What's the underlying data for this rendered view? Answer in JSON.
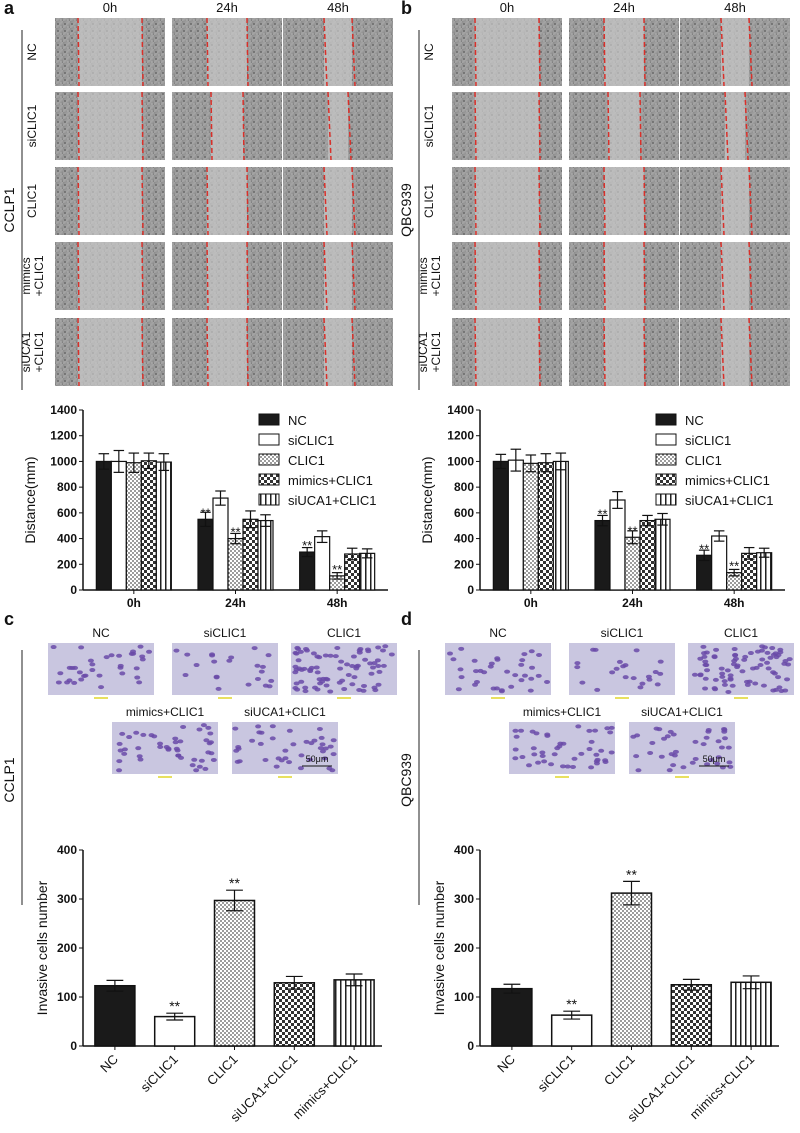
{
  "panels": {
    "a": {
      "letter": "a",
      "cell_line": "CCLP1",
      "time_labels": [
        "0h",
        "24h",
        "48h"
      ],
      "row_labels": [
        [
          "NC"
        ],
        [
          "siCLIC1"
        ],
        [
          "CLIC1"
        ],
        [
          "mimics",
          "+CLIC1"
        ],
        [
          "siUCA1",
          "+CLIC1"
        ]
      ]
    },
    "b": {
      "letter": "b",
      "cell_line": "QBC939",
      "time_labels": [
        "0h",
        "24h",
        "48h"
      ],
      "row_labels": [
        [
          "NC"
        ],
        [
          "siCLIC1"
        ],
        [
          "CLIC1"
        ],
        [
          "mimics",
          "+CLIC1"
        ],
        [
          "siUCA1",
          "+CLIC1"
        ]
      ]
    },
    "c": {
      "letter": "c",
      "cell_line": "CCLP1",
      "image_labels": [
        "NC",
        "siCLIC1",
        "CLIC1",
        "mimics+CLIC1",
        "siUCA1+CLIC1"
      ],
      "scale_bar": "50μm"
    },
    "d": {
      "letter": "d",
      "cell_line": "QBC939",
      "image_labels": [
        "NC",
        "siCLIC1",
        "CLIC1",
        "mimics+CLIC1",
        "siUCA1+CLIC1"
      ],
      "scale_bar": "50μm"
    }
  },
  "colors": {
    "wound_line": "#d9302a",
    "stain": "#6a4aa8",
    "stain_bg": "#c9c6e0"
  },
  "chart_data": [
    {
      "id": "a",
      "type": "bar",
      "ylabel": "Distance(mm)",
      "ylim": [
        0,
        1400
      ],
      "yticks": [
        0,
        200,
        400,
        600,
        800,
        1000,
        1200,
        1400
      ],
      "categories": [
        "0h",
        "24h",
        "48h"
      ],
      "legend_position": "top-right",
      "series": [
        {
          "name": "NC",
          "values": [
            1000,
            550,
            295
          ],
          "errors": [
            60,
            55,
            35
          ],
          "sig": [
            "",
            "**",
            "**"
          ]
        },
        {
          "name": "siCLIC1",
          "values": [
            1000,
            715,
            415
          ],
          "errors": [
            85,
            55,
            45
          ],
          "sig": [
            "",
            "",
            ""
          ]
        },
        {
          "name": "CLIC1",
          "values": [
            990,
            400,
            110
          ],
          "errors": [
            75,
            40,
            25
          ],
          "sig": [
            "",
            "**",
            "**"
          ]
        },
        {
          "name": "mimics+CLIC1",
          "values": [
            1005,
            550,
            280
          ],
          "errors": [
            60,
            65,
            45
          ],
          "sig": [
            "",
            "",
            ""
          ]
        },
        {
          "name": "siUCA1+CLIC1",
          "values": [
            995,
            540,
            285
          ],
          "errors": [
            65,
            45,
            35
          ],
          "sig": [
            "",
            "",
            ""
          ]
        }
      ]
    },
    {
      "id": "b",
      "type": "bar",
      "ylabel": "Distance(mm)",
      "ylim": [
        0,
        1400
      ],
      "yticks": [
        0,
        200,
        400,
        600,
        800,
        1000,
        1200,
        1400
      ],
      "categories": [
        "0h",
        "24h",
        "48h"
      ],
      "legend_position": "top-right",
      "series": [
        {
          "name": "NC",
          "values": [
            1000,
            540,
            270
          ],
          "errors": [
            55,
            40,
            40
          ],
          "sig": [
            "",
            "**",
            "**"
          ]
        },
        {
          "name": "siCLIC1",
          "values": [
            1010,
            700,
            420
          ],
          "errors": [
            85,
            65,
            40
          ],
          "sig": [
            "",
            "",
            ""
          ]
        },
        {
          "name": "CLIC1",
          "values": [
            985,
            410,
            135
          ],
          "errors": [
            65,
            50,
            25
          ],
          "sig": [
            "",
            "**",
            "**"
          ]
        },
        {
          "name": "mimics+CLIC1",
          "values": [
            990,
            540,
            285
          ],
          "errors": [
            70,
            40,
            45
          ],
          "sig": [
            "",
            "",
            ""
          ]
        },
        {
          "name": "siUCA1+CLIC1",
          "values": [
            1000,
            550,
            290
          ],
          "errors": [
            65,
            45,
            35
          ],
          "sig": [
            "",
            "",
            ""
          ]
        }
      ]
    },
    {
      "id": "c",
      "type": "bar",
      "ylabel": "Invasive cells number",
      "ylim": [
        0,
        400
      ],
      "yticks": [
        0,
        100,
        200,
        300,
        400
      ],
      "categories": [
        "NC",
        "siCLIC1",
        "CLIC1",
        "siUCA1+CLIC1",
        "mimics+CLIC1"
      ],
      "values": [
        123,
        60,
        297,
        129,
        135
      ],
      "errors": [
        11,
        7,
        21,
        13,
        12
      ],
      "sig": [
        "",
        "**",
        "**",
        "",
        ""
      ]
    },
    {
      "id": "d",
      "type": "bar",
      "ylabel": "Invasive cells number",
      "ylim": [
        0,
        400
      ],
      "yticks": [
        0,
        100,
        200,
        300,
        400
      ],
      "categories": [
        "NC",
        "siCLIC1",
        "CLIC1",
        "siUCA1+CLIC1",
        "mimics+CLIC1"
      ],
      "values": [
        117,
        63,
        312,
        125,
        130
      ],
      "errors": [
        9,
        8,
        24,
        11,
        13
      ],
      "sig": [
        "",
        "**",
        "**",
        "",
        ""
      ]
    }
  ]
}
